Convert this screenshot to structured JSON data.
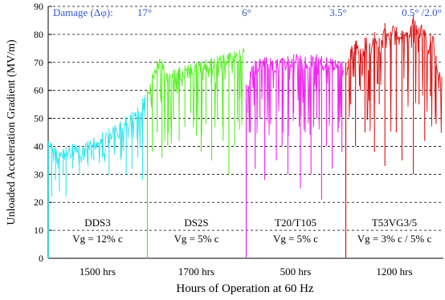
{
  "chart_data": {
    "type": "line",
    "title": "",
    "xlabel": "Hours of Operation at 60 Hz",
    "ylabel": "Unloaded Acceleration Gradient (MV/m)",
    "ylim": [
      0,
      90
    ],
    "yticks": [
      0,
      10,
      20,
      30,
      40,
      50,
      60,
      70,
      80,
      90
    ],
    "grid": "horizontal dashed",
    "x_units": "segment-relative position (0-1 within each segment)",
    "damage_header": {
      "label": "Damage (Δφ):",
      "values": [
        "17°",
        "6°",
        "3.5°",
        "0.5° /2.0°"
      ]
    },
    "segments": [
      {
        "name": "DDS3",
        "vg": "Vg = 12% c",
        "hours": "1500 hrs",
        "color": "#33e6ee",
        "profile": [
          [
            0,
            42
          ],
          [
            0.05,
            40
          ],
          [
            0.1,
            38
          ],
          [
            0.18,
            40
          ],
          [
            0.25,
            41
          ],
          [
            0.35,
            40
          ],
          [
            0.4,
            42
          ],
          [
            0.5,
            44
          ],
          [
            0.6,
            46
          ],
          [
            0.7,
            48
          ],
          [
            0.78,
            50
          ],
          [
            0.85,
            52
          ],
          [
            0.92,
            54
          ],
          [
            1,
            59
          ]
        ],
        "dips": [
          [
            0.02,
            22
          ],
          [
            0.06,
            28
          ],
          [
            0.1,
            24
          ],
          [
            0.14,
            30
          ],
          [
            0.17,
            22
          ],
          [
            0.24,
            32
          ],
          [
            0.31,
            30
          ],
          [
            0.4,
            33
          ],
          [
            0.46,
            35
          ],
          [
            0.55,
            36
          ],
          [
            0.62,
            30
          ],
          [
            0.68,
            38
          ],
          [
            0.74,
            35
          ],
          [
            0.8,
            30
          ],
          [
            0.86,
            32
          ],
          [
            0.92,
            36
          ],
          [
            0.97,
            28
          ]
        ]
      },
      {
        "name": "DS2S",
        "vg": "Vg = 5% c",
        "hours": "1700 hrs",
        "color": "#55ee22",
        "profile": [
          [
            0,
            60
          ],
          [
            0.06,
            69
          ],
          [
            0.12,
            72
          ],
          [
            0.2,
            66
          ],
          [
            0.3,
            68
          ],
          [
            0.4,
            69
          ],
          [
            0.5,
            70
          ],
          [
            0.6,
            71
          ],
          [
            0.7,
            72
          ],
          [
            0.8,
            73
          ],
          [
            0.9,
            74
          ],
          [
            1,
            75
          ]
        ],
        "dips": [
          [
            0.04,
            38
          ],
          [
            0.09,
            45
          ],
          [
            0.14,
            36
          ],
          [
            0.2,
            40
          ],
          [
            0.26,
            50
          ],
          [
            0.32,
            42
          ],
          [
            0.38,
            47
          ],
          [
            0.44,
            52
          ],
          [
            0.5,
            44
          ],
          [
            0.55,
            38
          ],
          [
            0.6,
            48
          ],
          [
            0.66,
            35
          ],
          [
            0.72,
            50
          ],
          [
            0.78,
            42
          ],
          [
            0.84,
            30
          ],
          [
            0.9,
            40
          ],
          [
            0.95,
            46
          ]
        ]
      },
      {
        "name": "T20/T105",
        "vg": "Vg = 5% c",
        "hours": "500 hrs",
        "color": "#ee22ee",
        "profile": [
          [
            0,
            62
          ],
          [
            0.05,
            70
          ],
          [
            0.1,
            71
          ],
          [
            0.2,
            72
          ],
          [
            0.3,
            71
          ],
          [
            0.4,
            72
          ],
          [
            0.5,
            73
          ],
          [
            0.6,
            72
          ],
          [
            0.7,
            73
          ],
          [
            0.8,
            72
          ],
          [
            0.9,
            71
          ],
          [
            1,
            70
          ]
        ],
        "dips": [
          [
            0.03,
            45
          ],
          [
            0.08,
            32
          ],
          [
            0.13,
            50
          ],
          [
            0.18,
            28
          ],
          [
            0.24,
            48
          ],
          [
            0.3,
            35
          ],
          [
            0.36,
            40
          ],
          [
            0.42,
            30
          ],
          [
            0.48,
            52
          ],
          [
            0.55,
            25
          ],
          [
            0.6,
            45
          ],
          [
            0.66,
            30
          ],
          [
            0.72,
            50
          ],
          [
            0.77,
            21
          ],
          [
            0.82,
            40
          ],
          [
            0.88,
            32
          ],
          [
            0.94,
            45
          ],
          [
            0.98,
            38
          ]
        ]
      },
      {
        "name": "T53VG3/5",
        "vg": "Vg = 3% c / 5% c",
        "hours": "1200 hrs",
        "color": "#dd1111",
        "profile": [
          [
            0,
            70
          ],
          [
            0.05,
            76
          ],
          [
            0.1,
            78
          ],
          [
            0.15,
            74
          ],
          [
            0.2,
            80
          ],
          [
            0.25,
            76
          ],
          [
            0.3,
            82
          ],
          [
            0.35,
            78
          ],
          [
            0.4,
            84
          ],
          [
            0.45,
            80
          ],
          [
            0.5,
            85
          ],
          [
            0.55,
            79
          ],
          [
            0.6,
            83
          ],
          [
            0.65,
            80
          ],
          [
            0.7,
            87
          ],
          [
            0.75,
            82
          ],
          [
            0.8,
            84
          ],
          [
            0.85,
            78
          ],
          [
            0.9,
            82
          ],
          [
            0.95,
            70
          ],
          [
            1,
            65
          ]
        ],
        "dips": [
          [
            0.04,
            55
          ],
          [
            0.09,
            40
          ],
          [
            0.14,
            60
          ],
          [
            0.19,
            45
          ],
          [
            0.24,
            62
          ],
          [
            0.29,
            38
          ],
          [
            0.34,
            55
          ],
          [
            0.4,
            33
          ],
          [
            0.46,
            58
          ],
          [
            0.52,
            45
          ],
          [
            0.58,
            35
          ],
          [
            0.64,
            60
          ],
          [
            0.7,
            30
          ],
          [
            0.76,
            55
          ],
          [
            0.82,
            42
          ],
          [
            0.88,
            58
          ],
          [
            0.94,
            48
          ]
        ]
      }
    ]
  }
}
